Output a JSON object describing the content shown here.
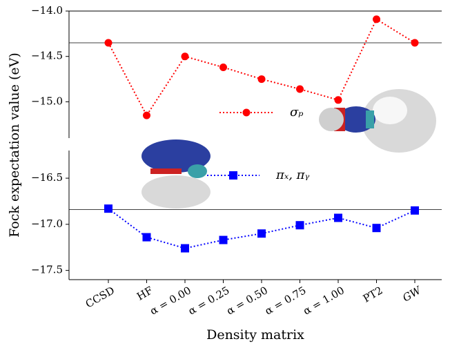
{
  "chart_data": {
    "type": "line",
    "x_label": "Density matrix",
    "y_label": "Fock expectation value (eV)",
    "categories": [
      "CCSD",
      "HF",
      "α = 0.00",
      "α = 0.25",
      "α = 0.50",
      "α = 0.75",
      "α = 1.00",
      "PT2",
      "GW"
    ],
    "series": [
      {
        "name": "σₚ",
        "color": "#ff0000",
        "marker": "circle",
        "axis": "y2",
        "values": [
          -14.35,
          -15.15,
          -14.5,
          -14.62,
          -14.75,
          -14.86,
          -14.98,
          -14.09,
          -14.35
        ]
      },
      {
        "name": "πₓ, πᵧ",
        "color": "#0000ff",
        "marker": "square",
        "values": [
          -16.83,
          -17.14,
          -17.26,
          -17.17,
          -17.1,
          -17.01,
          -16.93,
          -17.04,
          -16.85
        ]
      }
    ],
    "y2lim": [
      -15.4,
      -14.0
    ],
    "y2ticks": [
      {
        "value": -14.0,
        "label": "−14.0"
      },
      {
        "value": -14.5,
        "label": "−14.5"
      },
      {
        "value": -15.0,
        "label": "−15.0"
      }
    ],
    "ylim": [
      -17.6,
      -16.2
    ],
    "yticks": [
      {
        "value": -16.5,
        "label": "−16.5"
      },
      {
        "value": -17.0,
        "label": "−17.0"
      },
      {
        "value": -17.5,
        "label": "−17.5"
      }
    ],
    "hlines": [
      {
        "value": -14.35,
        "axis": "y2"
      },
      {
        "value": -16.84,
        "axis": "y"
      }
    ]
  }
}
